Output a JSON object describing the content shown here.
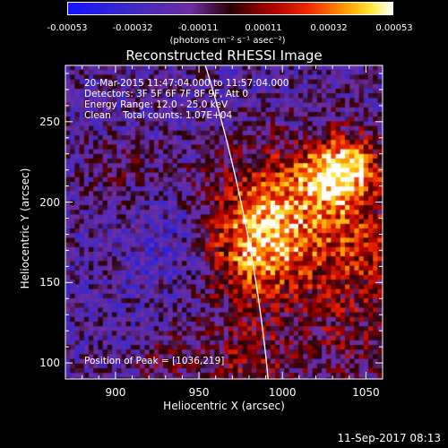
{
  "colorbar": {
    "ticks": [
      "-0.00053",
      "-0.00032",
      "-0.00011",
      "0.00011",
      "0.00032",
      "0.00053"
    ],
    "unit": "(photons cm⁻² s⁻¹ asec⁻²)",
    "range": [
      -0.00053,
      0.00053
    ]
  },
  "chart_data": {
    "type": "heatmap",
    "title": "Reconstructed RHESSI Image",
    "xlabel": "Heliocentric X (arcsec)",
    "ylabel": "Heliocentric Y (arcsec)",
    "xlim": [
      870,
      1060
    ],
    "ylim": [
      90,
      285
    ],
    "xticks": [
      900,
      950,
      1000,
      1050
    ],
    "yticks": [
      100,
      150,
      200,
      250
    ],
    "peak": [
      1036,
      219
    ],
    "limb_radius_arcsec": 995.5,
    "annotations": [
      "20-Mar-2015 11:47:04.000 to 11:57:04.000",
      "Detectors: 3F 5F 6F 7F 8F 9F, Att 0",
      "Energy Range: 12.0 - 25.0 keV",
      "Clean    Total counts: 1.07E+04"
    ],
    "peak_label": "Position of Peak = [1036,219]"
  },
  "footer": {
    "timestamp": "11-Sep-2017 08:13"
  }
}
